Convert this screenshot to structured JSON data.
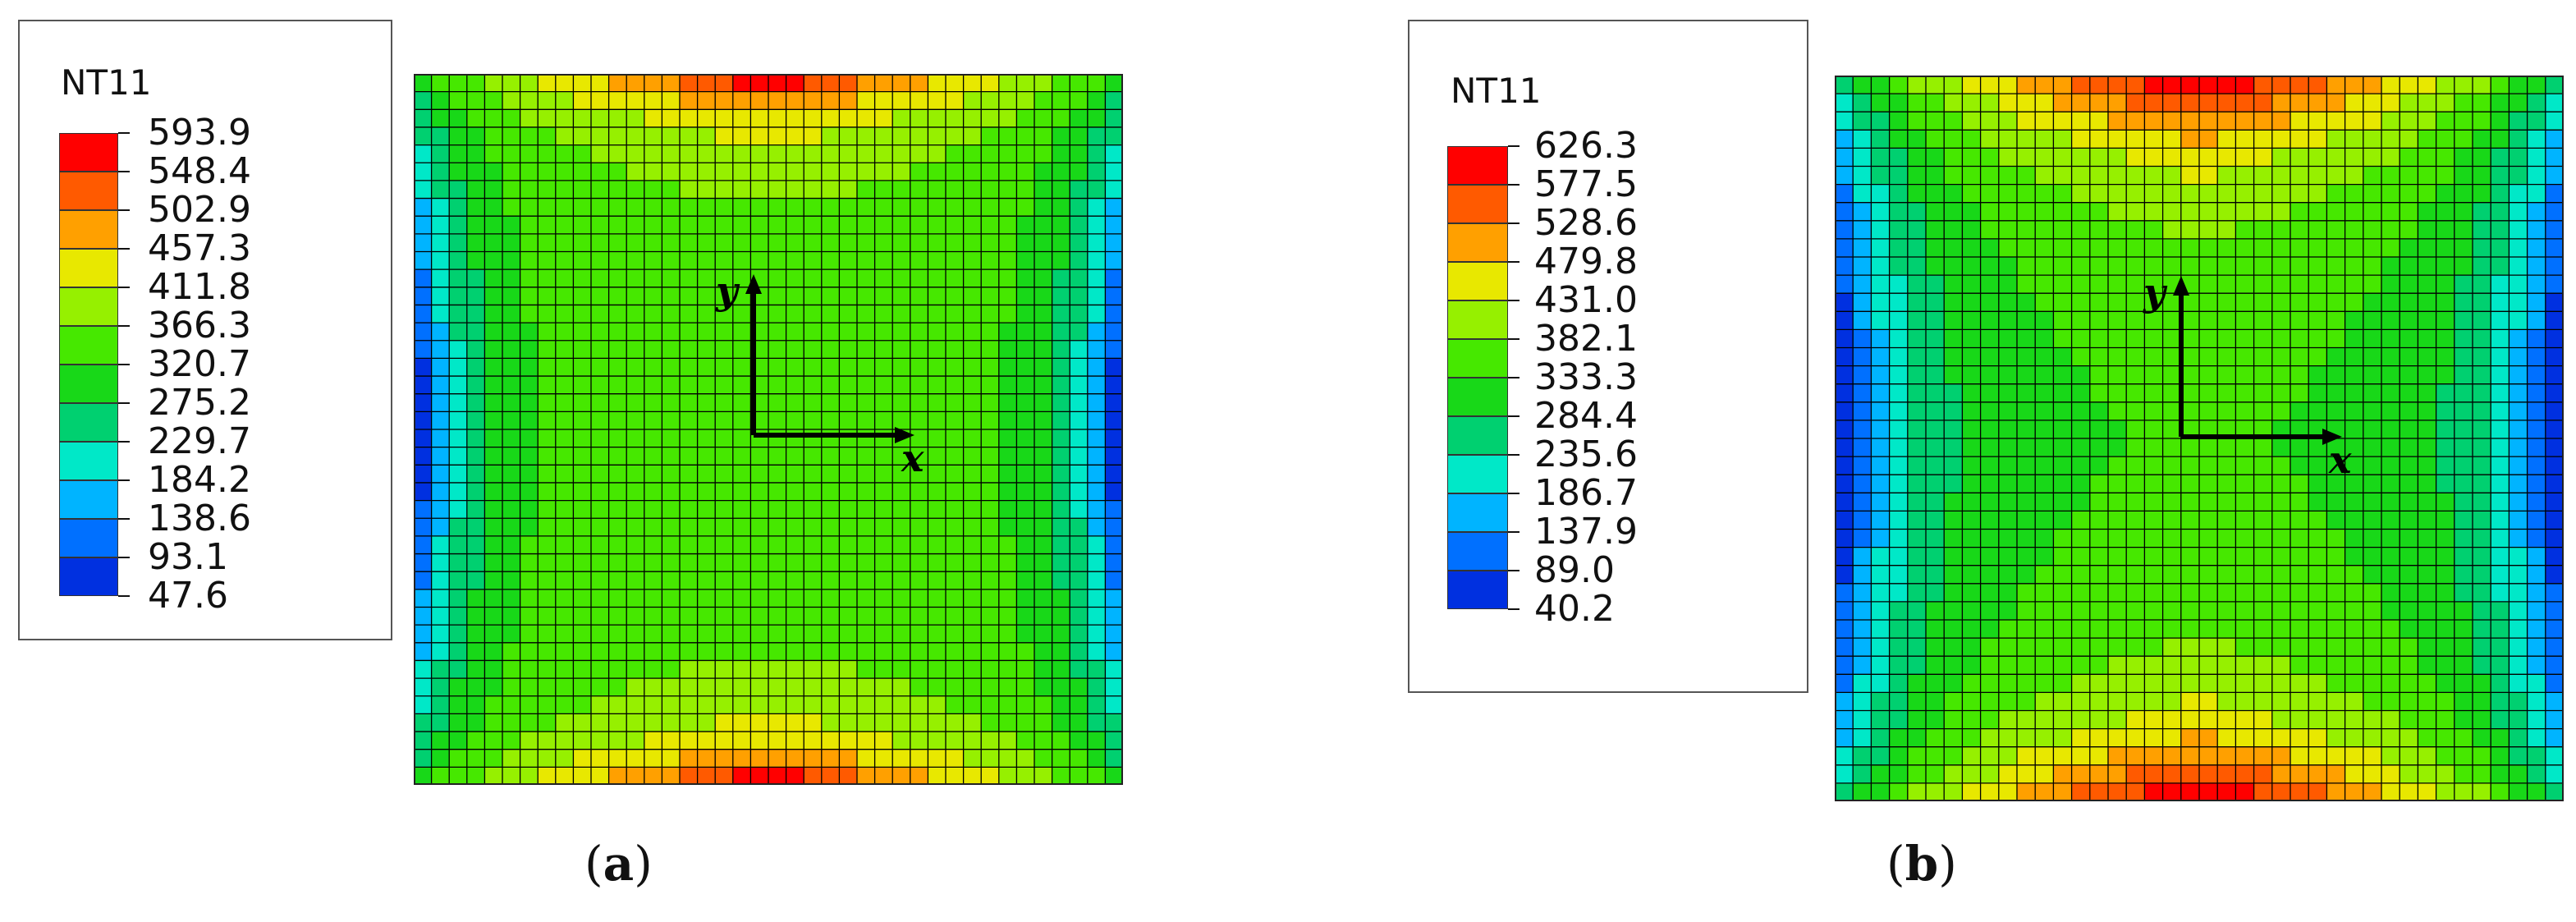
{
  "panels": [
    {
      "id": "a",
      "legend": {
        "title": "NT11",
        "values": [
          "593.9",
          "548.4",
          "502.9",
          "457.3",
          "411.8",
          "366.3",
          "320.7",
          "275.2",
          "229.7",
          "184.2",
          "138.6",
          "93.1",
          "47.6"
        ]
      },
      "axes": {
        "x_label": "x",
        "y_label": "y"
      },
      "caption": {
        "open": "(",
        "letter": "a",
        "close": ")"
      }
    },
    {
      "id": "b",
      "legend": {
        "title": "NT11",
        "values": [
          "626.3",
          "577.5",
          "528.6",
          "479.8",
          "431.0",
          "382.1",
          "333.3",
          "284.4",
          "235.6",
          "186.7",
          "137.9",
          "89.0",
          "40.2"
        ]
      },
      "axes": {
        "x_label": "x",
        "y_label": "y"
      },
      "caption": {
        "open": "(",
        "letter": "b",
        "close": ")"
      }
    }
  ],
  "colors": {
    "scale": [
      "#ff0000",
      "#ff5a00",
      "#ffa000",
      "#e8e800",
      "#96f000",
      "#46e800",
      "#18d818",
      "#00d070",
      "#00e8c8",
      "#00b4ff",
      "#0070ff",
      "#0030e0"
    ],
    "mesh": "#000000",
    "axes": "#000000"
  }
}
